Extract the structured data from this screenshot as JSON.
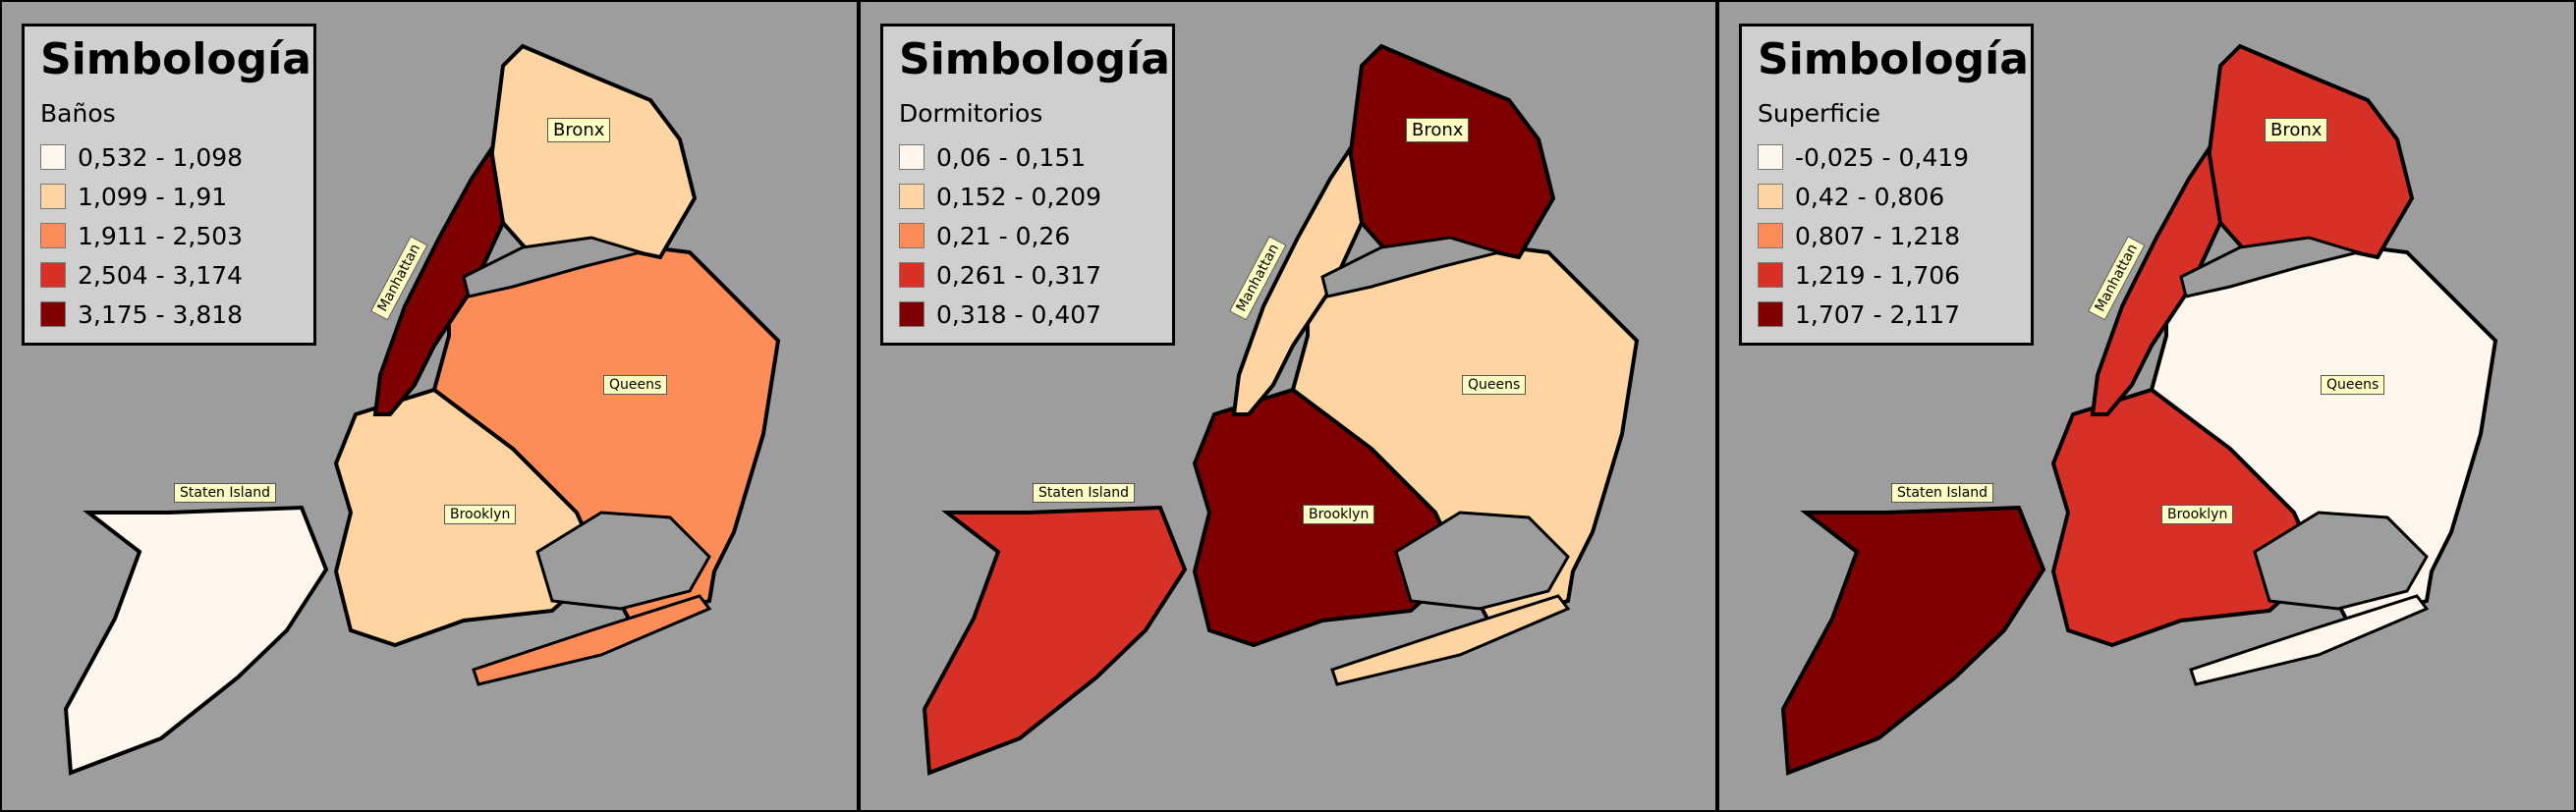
{
  "panels": [
    {
      "legend_title": "Simbología",
      "variable": "Baños",
      "classes": [
        "0,532 - 1,098",
        "1,099 - 1,91",
        "1,911 - 2,503",
        "2,504 - 3,174",
        "3,175 - 3,818"
      ],
      "borough_class": {
        "staten_island": 0,
        "brooklyn": 1,
        "bronx": 1,
        "queens": 2,
        "manhattan": 4
      }
    },
    {
      "legend_title": "Simbología",
      "variable": "Dormitorios",
      "classes": [
        "0,06 - 0,151",
        "0,152 - 0,209",
        "0,21 - 0,26",
        "0,261 - 0,317",
        "0,318 - 0,407"
      ],
      "borough_class": {
        "staten_island": 3,
        "brooklyn": 4,
        "bronx": 4,
        "queens": 1,
        "manhattan": 1
      }
    },
    {
      "legend_title": "Simbología",
      "variable": "Superficie",
      "classes": [
        "-0,025 - 0,419",
        "0,42 - 0,806",
        "0,807 - 1,218",
        "1,219 - 1,706",
        "1,707 - 2,117"
      ],
      "borough_class": {
        "staten_island": 4,
        "brooklyn": 3,
        "bronx": 3,
        "queens": 0,
        "manhattan": 3
      }
    }
  ],
  "labels": {
    "bronx": "Bronx",
    "queens": "Queens",
    "brooklyn": "Brooklyn",
    "staten_island": "Staten Island",
    "manhattan": "Manhattan"
  },
  "palette": [
    "#fef6ec",
    "#fdd4a2",
    "#fc8d59",
    "#d73027",
    "#7f0000"
  ],
  "background_color": "#9d9d9d",
  "legend_background": "#cfcfcf",
  "label_background": "#fdfdc4"
}
